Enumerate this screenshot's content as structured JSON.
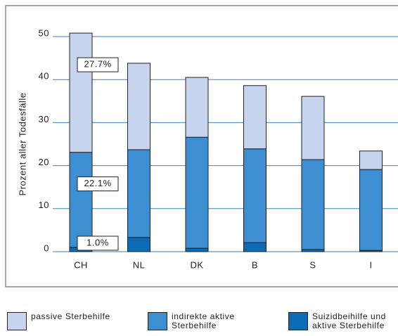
{
  "chart_data": {
    "type": "bar",
    "stacked": true,
    "y_label": "Prozent aller Todesfälle",
    "categories": [
      "CH",
      "NL",
      "DK",
      "B",
      "S",
      "I"
    ],
    "series": [
      {
        "name": "Suizidbeihilfe und aktive Sterbehilfe",
        "color": "#0b6cb5",
        "values": [
          1.0,
          3.3,
          0.8,
          2.1,
          0.5,
          0.3
        ],
        "value_labels": [
          "1.0%",
          null,
          null,
          null,
          null,
          null
        ]
      },
      {
        "name": "indirekte aktive Sterbehilfe",
        "color": "#3d8fd2",
        "values": [
          22.1,
          20.4,
          25.8,
          21.8,
          20.9,
          18.8
        ],
        "value_labels": [
          "22.1%",
          null,
          null,
          null,
          null,
          null
        ]
      },
      {
        "name": "passive Sterbehilfe",
        "color": "#c6d4ee",
        "values": [
          27.7,
          20.1,
          13.9,
          14.7,
          14.7,
          4.3
        ],
        "value_labels": [
          "27.7%",
          null,
          null,
          null,
          null,
          null
        ]
      }
    ],
    "ylim": [
      0,
      50
    ],
    "yticks": [
      0,
      10,
      20,
      30,
      40,
      50
    ],
    "grid": true,
    "legend": "bottom"
  }
}
